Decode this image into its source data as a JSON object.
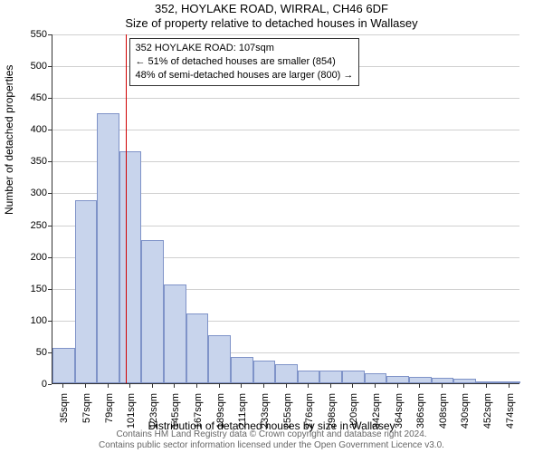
{
  "titles": {
    "main": "352, HOYLAKE ROAD, WIRRAL, CH46 6DF",
    "sub": "Size of property relative to detached houses in Wallasey"
  },
  "chart": {
    "type": "histogram",
    "background_color": "#ffffff",
    "grid_color": "#d0d0d0",
    "axis_color": "#333333",
    "bar_fill": "#c8d4ec",
    "bar_stroke": "#7f93c8",
    "bar_stroke_width": 1,
    "ylim": [
      0,
      550
    ],
    "ytick_step": 50,
    "ylabel": "Number of detached properties",
    "xlabel": "Distribution of detached houses by size in Wallasey",
    "x_categories": [
      "35sqm",
      "57sqm",
      "79sqm",
      "101sqm",
      "123sqm",
      "145sqm",
      "167sqm",
      "189sqm",
      "211sqm",
      "233sqm",
      "255sqm",
      "276sqm",
      "298sqm",
      "320sqm",
      "342sqm",
      "364sqm",
      "386sqm",
      "408sqm",
      "430sqm",
      "452sqm",
      "474sqm"
    ],
    "values": [
      55,
      288,
      425,
      365,
      225,
      155,
      110,
      75,
      42,
      35,
      30,
      20,
      20,
      20,
      15,
      12,
      10,
      8,
      7,
      3,
      3
    ],
    "marker": {
      "x_index_after": 3,
      "fraction_into_bin": 0.27,
      "color": "#d00000"
    },
    "annotation": {
      "lines": [
        "352 HOYLAKE ROAD: 107sqm",
        "← 51% of detached houses are smaller (854)",
        "48% of semi-detached houses are larger (800) →"
      ],
      "border_color": "#333333",
      "bg_color": "#ffffff",
      "fontsize": 11
    },
    "label_fontsize": 12,
    "tick_fontsize": 11
  },
  "footer": {
    "line1": "Contains HM Land Registry data © Crown copyright and database right 2024.",
    "line2": "Contains public sector information licensed under the Open Government Licence v3.0."
  }
}
